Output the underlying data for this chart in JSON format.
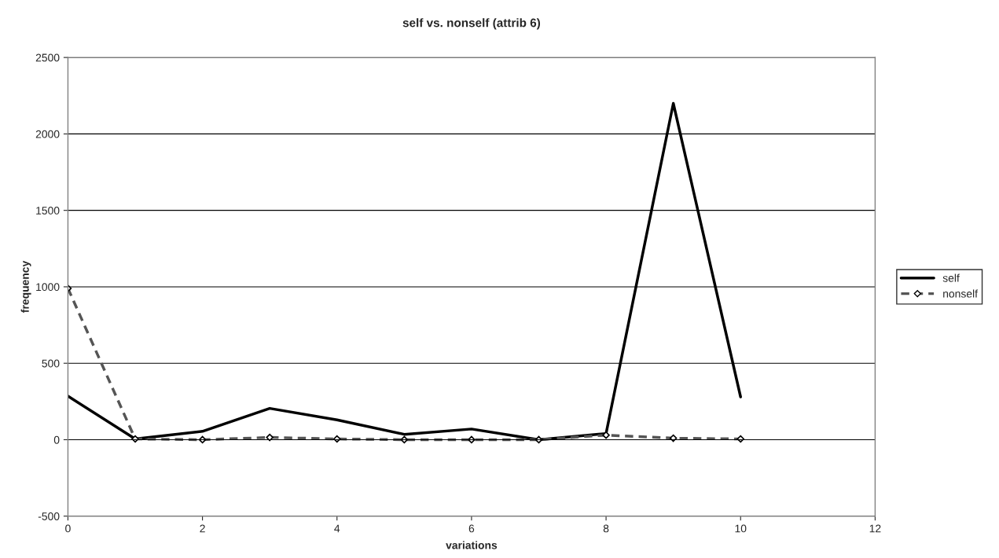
{
  "chart_data": {
    "type": "line",
    "title": "self vs. nonself (attrib 6)",
    "xlabel": "variations",
    "ylabel": "frequency",
    "x": [
      0,
      1,
      2,
      3,
      4,
      5,
      6,
      7,
      8,
      9,
      10
    ],
    "series": [
      {
        "name": "self",
        "color": "#000000",
        "line_style": "solid",
        "marker": "none",
        "values": [
          285,
          5,
          55,
          205,
          130,
          35,
          70,
          0,
          40,
          2200,
          280
        ]
      },
      {
        "name": "nonself",
        "color": "#555555",
        "line_style": "dashed",
        "marker": "diamond",
        "values": [
          990,
          5,
          0,
          15,
          5,
          0,
          0,
          0,
          30,
          10,
          5
        ]
      }
    ],
    "xlim": [
      0,
      12
    ],
    "xticks": [
      0,
      2,
      4,
      6,
      8,
      10,
      12
    ],
    "ylim": [
      -500,
      2500
    ],
    "yticks": [
      -500,
      0,
      500,
      1000,
      1500,
      2000,
      2500
    ],
    "grid": "y",
    "legend": "right"
  }
}
